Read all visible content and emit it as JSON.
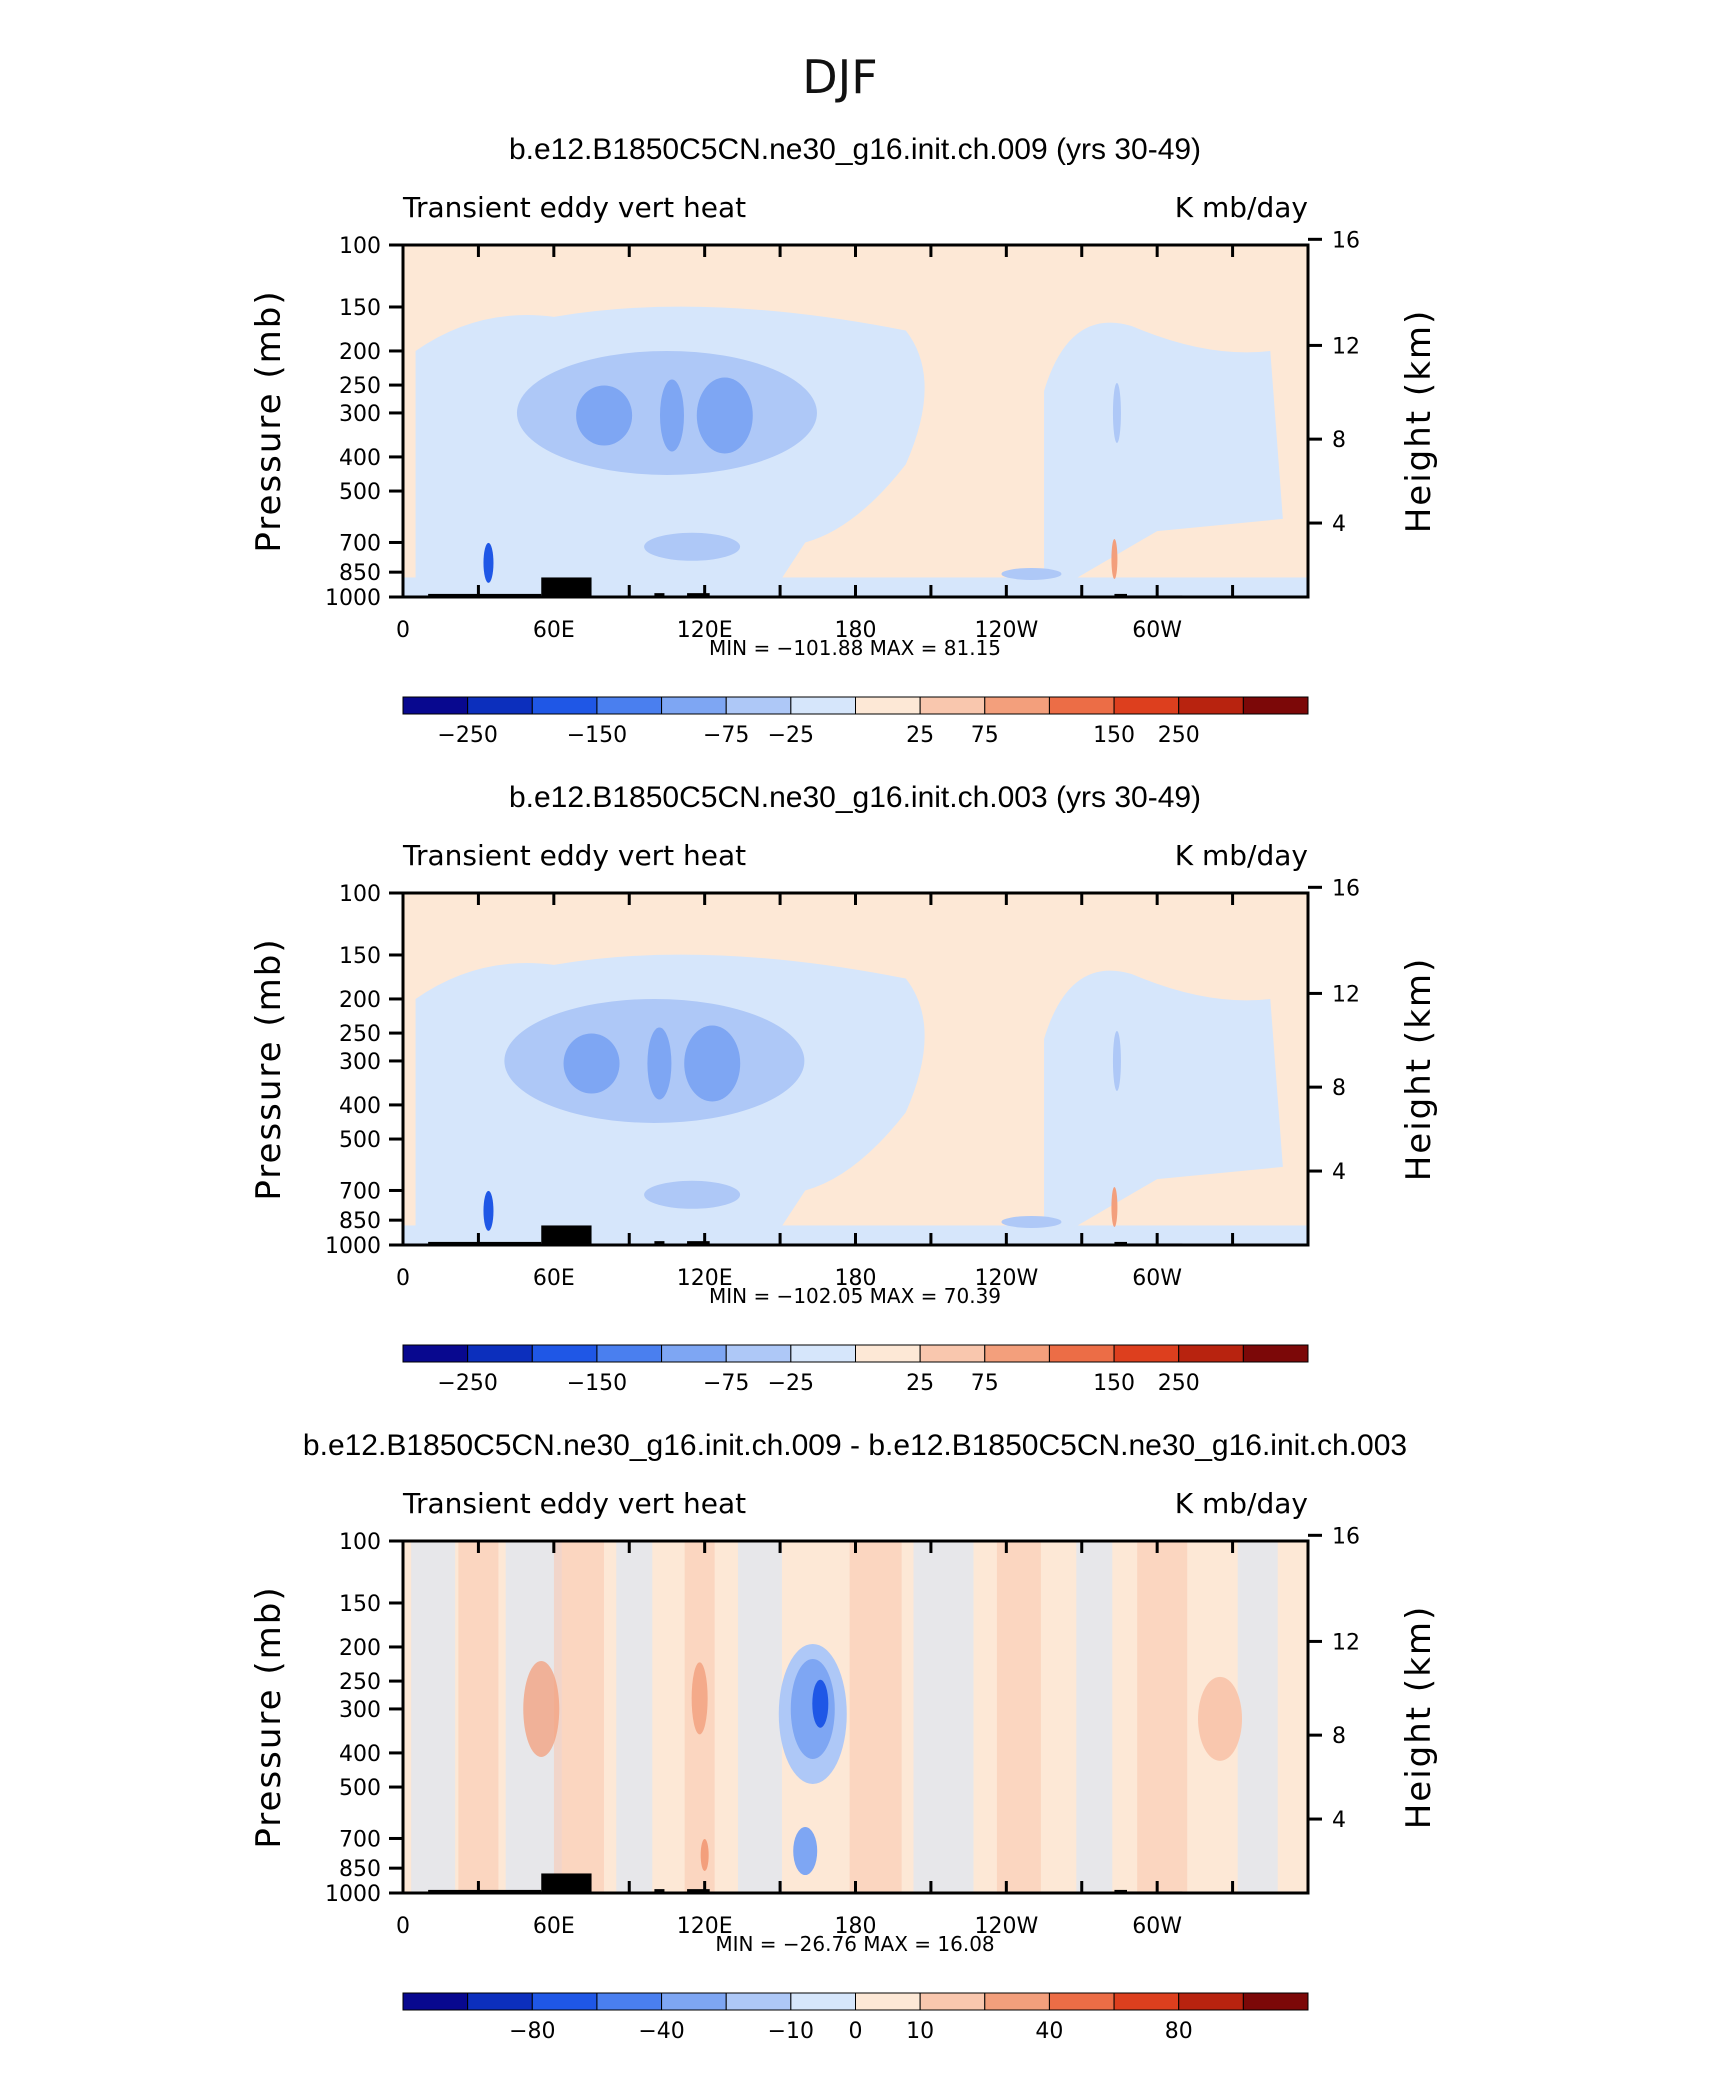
{
  "figure": {
    "title": "DJF"
  },
  "colors": {
    "abs_scale": [
      "#08088f",
      "#0c2fbd",
      "#1f57e6",
      "#4a7fef",
      "#7ea6f3",
      "#aec8f7",
      "#d6e6fb",
      "#fde8d6",
      "#f9c7ae",
      "#f39f7c",
      "#ec6d46",
      "#dd3f1e",
      "#b8230f",
      "#7c0808"
    ],
    "diff_scale": [
      "#08088f",
      "#0c2fbd",
      "#1f57e6",
      "#4a7fef",
      "#7ea6f3",
      "#aec8f7",
      "#d6e6fb",
      "#fde8d6",
      "#f9c7ae",
      "#f39f7c",
      "#ec6d46",
      "#dd3f1e",
      "#b8230f",
      "#7c0808"
    ],
    "topography": "#000000"
  },
  "chart_data": [
    {
      "type": "heatmap",
      "title": "b.e12.B1850C5CN.ne30_g16.init.ch.009 (yrs 30-49)",
      "left_label": "Transient eddy vert heat",
      "right_label": "K mb/day",
      "ylabel": "Pressure (mb)",
      "ylabel2": "Height (km)",
      "x_ticks": [
        "0",
        "60E",
        "120E",
        "180",
        "120W",
        "60W"
      ],
      "y_ticks": [
        "100",
        "150",
        "200",
        "250",
        "300",
        "400",
        "500",
        "700",
        "850",
        "1000"
      ],
      "y2_ticks": [
        "16",
        "12",
        "8",
        "4"
      ],
      "min_max_text": "MIN = −101.88   MAX =   81.15",
      "min": -101.88,
      "max": 81.15,
      "colorbar_labels": [
        "−250",
        "−150",
        "−75",
        "−25",
        "25",
        "75",
        "150",
        "250"
      ],
      "features": [
        {
          "lon": 105,
          "p": 320,
          "value": -50
        },
        {
          "lon": 85,
          "p": 310,
          "value": -75
        },
        {
          "lon": 128,
          "p": 310,
          "value": -75
        },
        {
          "lon": 35,
          "p": 800,
          "value": -100
        },
        {
          "lon": 282,
          "p": 800,
          "value": 80
        }
      ]
    },
    {
      "type": "heatmap",
      "title": "b.e12.B1850C5CN.ne30_g16.init.ch.003 (yrs 30-49)",
      "left_label": "Transient eddy vert heat",
      "right_label": "K mb/day",
      "ylabel": "Pressure (mb)",
      "ylabel2": "Height (km)",
      "x_ticks": [
        "0",
        "60E",
        "120E",
        "180",
        "120W",
        "60W"
      ],
      "y_ticks": [
        "100",
        "150",
        "200",
        "250",
        "300",
        "400",
        "500",
        "700",
        "850",
        "1000"
      ],
      "y2_ticks": [
        "16",
        "12",
        "8",
        "4"
      ],
      "min_max_text": "MIN = −102.05   MAX =   70.39",
      "min": -102.05,
      "max": 70.39,
      "colorbar_labels": [
        "−250",
        "−150",
        "−75",
        "−25",
        "25",
        "75",
        "150",
        "250"
      ],
      "features": [
        {
          "lon": 100,
          "p": 320,
          "value": -50
        },
        {
          "lon": 80,
          "p": 300,
          "value": -75
        },
        {
          "lon": 124,
          "p": 300,
          "value": -75
        },
        {
          "lon": 35,
          "p": 800,
          "value": -100
        },
        {
          "lon": 282,
          "p": 800,
          "value": 70
        }
      ]
    },
    {
      "type": "heatmap",
      "title": "b.e12.B1850C5CN.ne30_g16.init.ch.009 - b.e12.B1850C5CN.ne30_g16.init.ch.003",
      "left_label": "Transient eddy vert heat",
      "right_label": "K mb/day",
      "ylabel": "Pressure (mb)",
      "ylabel2": "Height (km)",
      "x_ticks": [
        "0",
        "60E",
        "120E",
        "180",
        "120W",
        "60W"
      ],
      "y_ticks": [
        "100",
        "150",
        "200",
        "250",
        "300",
        "400",
        "500",
        "700",
        "850",
        "1000"
      ],
      "y2_ticks": [
        "16",
        "12",
        "8",
        "4"
      ],
      "min_max_text": "MIN = −26.76   MAX =   16.08",
      "min": -26.76,
      "max": 16.08,
      "colorbar_labels": [
        "−80",
        "−40",
        "−10",
        "0",
        "10",
        "40",
        "80"
      ],
      "features": [
        {
          "lon": 163,
          "p": 300,
          "value": -26
        },
        {
          "lon": 55,
          "p": 300,
          "value": 12
        },
        {
          "lon": 118,
          "p": 280,
          "value": 14
        },
        {
          "lon": 325,
          "p": 320,
          "value": 10
        }
      ]
    }
  ]
}
